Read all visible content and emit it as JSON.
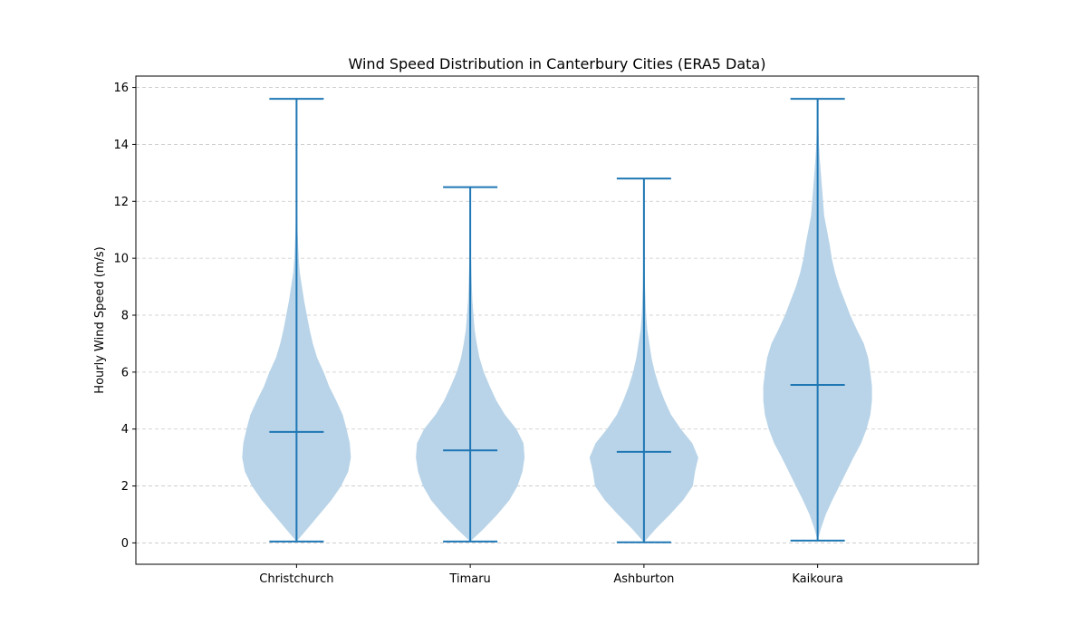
{
  "chart_data": {
    "type": "violin",
    "title": "Wind Speed Distribution in Canterbury Cities (ERA5 Data)",
    "xlabel": "",
    "ylabel": "Hourly Wind Speed (m/s)",
    "ylim": [
      -0.75,
      16.4
    ],
    "yticks": [
      0,
      2,
      4,
      6,
      8,
      10,
      12,
      14,
      16
    ],
    "grid": {
      "axis": "y",
      "style": "dashed",
      "color": "#c8c8c8"
    },
    "colors": {
      "violin_fill": "#b9d4e8",
      "violin_line": "#1f77b4"
    },
    "categories": [
      "Christchurch",
      "Timaru",
      "Ashburton",
      "Kaikoura"
    ],
    "series": [
      {
        "category": "Christchurch",
        "min": 0.05,
        "max": 15.6,
        "mean": 3.9,
        "density": [
          [
            0.05,
            0.0
          ],
          [
            0.5,
            0.2
          ],
          [
            1.0,
            0.42
          ],
          [
            1.5,
            0.64
          ],
          [
            2.0,
            0.82
          ],
          [
            2.5,
            0.95
          ],
          [
            3.0,
            1.0
          ],
          [
            3.5,
            0.98
          ],
          [
            4.0,
            0.92
          ],
          [
            4.5,
            0.85
          ],
          [
            5.0,
            0.73
          ],
          [
            5.5,
            0.6
          ],
          [
            6.0,
            0.5
          ],
          [
            6.5,
            0.38
          ],
          [
            7.0,
            0.3
          ],
          [
            7.5,
            0.24
          ],
          [
            8.0,
            0.19
          ],
          [
            8.5,
            0.14
          ],
          [
            9.0,
            0.1
          ],
          [
            9.5,
            0.06
          ],
          [
            10.0,
            0.04
          ],
          [
            11.0,
            0.018
          ],
          [
            12.0,
            0.008
          ],
          [
            13.0,
            0.004
          ],
          [
            14.0,
            0.002
          ],
          [
            15.6,
            0.0
          ]
        ]
      },
      {
        "category": "Timaru",
        "min": 0.05,
        "max": 12.5,
        "mean": 3.25,
        "density": [
          [
            0.05,
            0.0
          ],
          [
            0.5,
            0.25
          ],
          [
            1.0,
            0.5
          ],
          [
            1.5,
            0.72
          ],
          [
            2.0,
            0.87
          ],
          [
            2.5,
            0.96
          ],
          [
            3.0,
            1.0
          ],
          [
            3.5,
            0.98
          ],
          [
            4.0,
            0.85
          ],
          [
            4.5,
            0.64
          ],
          [
            5.0,
            0.48
          ],
          [
            5.5,
            0.36
          ],
          [
            6.0,
            0.25
          ],
          [
            6.5,
            0.17
          ],
          [
            7.0,
            0.12
          ],
          [
            7.5,
            0.08
          ],
          [
            8.0,
            0.06
          ],
          [
            8.5,
            0.04
          ],
          [
            9.0,
            0.03
          ],
          [
            10.0,
            0.015
          ],
          [
            11.0,
            0.005
          ],
          [
            12.5,
            0.0
          ]
        ]
      },
      {
        "category": "Ashburton",
        "min": 0.02,
        "max": 12.8,
        "mean": 3.2,
        "density": [
          [
            0.02,
            0.0
          ],
          [
            0.5,
            0.22
          ],
          [
            1.0,
            0.48
          ],
          [
            1.5,
            0.72
          ],
          [
            2.0,
            0.9
          ],
          [
            2.5,
            0.94
          ],
          [
            3.0,
            1.0
          ],
          [
            3.5,
            0.89
          ],
          [
            4.0,
            0.68
          ],
          [
            4.5,
            0.5
          ],
          [
            5.0,
            0.38
          ],
          [
            5.5,
            0.28
          ],
          [
            6.0,
            0.2
          ],
          [
            6.5,
            0.14
          ],
          [
            7.0,
            0.1
          ],
          [
            7.5,
            0.06
          ],
          [
            8.0,
            0.04
          ],
          [
            9.0,
            0.02
          ],
          [
            10.0,
            0.01
          ],
          [
            11.0,
            0.004
          ],
          [
            12.8,
            0.0
          ]
        ]
      },
      {
        "category": "Kaikoura",
        "min": 0.08,
        "max": 15.6,
        "mean": 5.55,
        "density": [
          [
            0.08,
            0.0
          ],
          [
            0.5,
            0.06
          ],
          [
            1.0,
            0.15
          ],
          [
            1.5,
            0.27
          ],
          [
            2.0,
            0.4
          ],
          [
            2.5,
            0.53
          ],
          [
            3.0,
            0.66
          ],
          [
            3.5,
            0.8
          ],
          [
            4.0,
            0.9
          ],
          [
            4.5,
            0.97
          ],
          [
            5.0,
            1.0
          ],
          [
            5.5,
            1.0
          ],
          [
            6.0,
            0.97
          ],
          [
            6.5,
            0.93
          ],
          [
            7.0,
            0.85
          ],
          [
            7.5,
            0.72
          ],
          [
            8.0,
            0.6
          ],
          [
            8.5,
            0.5
          ],
          [
            9.0,
            0.4
          ],
          [
            9.5,
            0.32
          ],
          [
            10.0,
            0.26
          ],
          [
            10.5,
            0.22
          ],
          [
            11.0,
            0.17
          ],
          [
            11.5,
            0.12
          ],
          [
            12.0,
            0.1
          ],
          [
            12.5,
            0.08
          ],
          [
            13.0,
            0.06
          ],
          [
            13.5,
            0.04
          ],
          [
            14.0,
            0.025
          ],
          [
            15.0,
            0.008
          ],
          [
            15.6,
            0.0
          ]
        ]
      }
    ]
  }
}
